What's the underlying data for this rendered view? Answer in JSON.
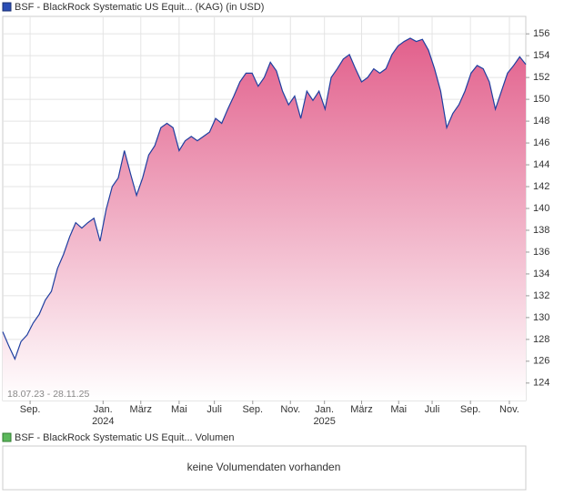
{
  "chart_data": {
    "type": "area",
    "title": "BSF - BlackRock Systematic US Equit... (KAG) (in USD)",
    "date_range": "18.07.23 - 28.11.25",
    "color": "#1f3fa0",
    "fill_top": "#e2608c",
    "values": [
      128.7,
      127.4,
      126.2,
      127.8,
      128.4,
      129.5,
      130.3,
      131.6,
      132.4,
      134.5,
      135.8,
      137.4,
      138.7,
      138.2,
      138.7,
      139.1,
      137.0,
      139.9,
      142.0,
      142.8,
      145.3,
      143.2,
      141.2,
      142.8,
      144.9,
      145.75,
      147.4,
      147.8,
      147.4,
      145.3,
      146.2,
      146.6,
      146.2,
      146.6,
      147.0,
      148.25,
      147.8,
      149.1,
      150.3,
      151.6,
      152.4,
      152.4,
      151.2,
      152.0,
      153.4,
      152.6,
      150.75,
      149.5,
      150.3,
      148.25,
      150.75,
      149.9,
      150.75,
      149.1,
      152.0,
      152.8,
      153.7,
      154.1,
      152.8,
      151.6,
      152.0,
      152.8,
      152.4,
      152.8,
      154.1,
      154.9,
      155.3,
      155.6,
      155.3,
      155.5,
      154.5,
      152.8,
      150.75,
      147.4,
      148.7,
      149.5,
      150.75,
      152.4,
      153.1,
      152.8,
      151.6,
      149.1,
      150.75,
      152.4,
      153.1,
      153.9,
      153.2
    ],
    "ylim": [
      122.4,
      157.6
    ],
    "yticks": [
      124,
      126,
      128,
      130,
      132,
      134,
      136,
      138,
      140,
      142,
      144,
      146,
      148,
      150,
      152,
      154,
      156
    ],
    "xlim": [
      0,
      86
    ],
    "xticks": [
      {
        "value": 4.5,
        "label": "Sep."
      },
      {
        "value": 16.5,
        "label": "Jan."
      },
      {
        "value": 22.7,
        "label": "März"
      },
      {
        "value": 29.0,
        "label": "Mai"
      },
      {
        "value": 34.8,
        "label": "Juli"
      },
      {
        "value": 41.1,
        "label": "Sep."
      },
      {
        "value": 47.3,
        "label": "Nov."
      },
      {
        "value": 52.9,
        "label": "Jan."
      },
      {
        "value": 59.0,
        "label": "März"
      },
      {
        "value": 65.1,
        "label": "Mai"
      },
      {
        "value": 70.6,
        "label": "Juli"
      },
      {
        "value": 76.9,
        "label": "Sep."
      },
      {
        "value": 83.3,
        "label": "Nov."
      }
    ],
    "x_year_labels": [
      {
        "value": 16.5,
        "label": "2024"
      },
      {
        "value": 52.9,
        "label": "2025"
      }
    ],
    "grid": true,
    "volume_legend": "BSF - BlackRock Systematic US Equit... Volumen",
    "volume_note": "keine Volumendaten vorhanden"
  }
}
